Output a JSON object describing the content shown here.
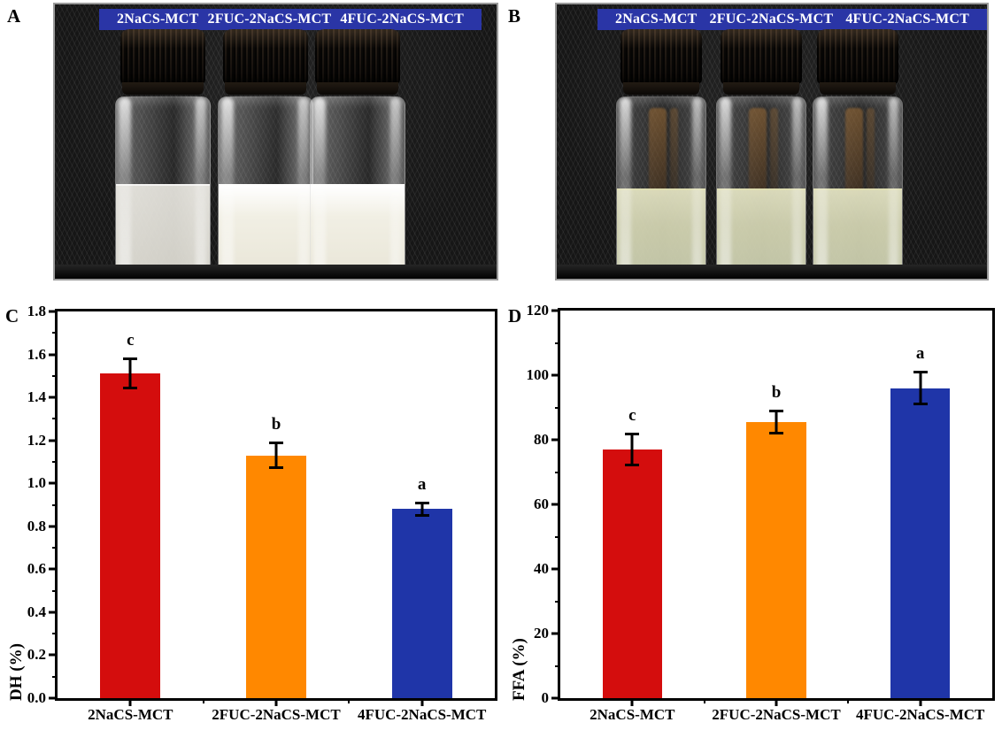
{
  "figure": {
    "panel_a": {
      "letter": "A"
    },
    "panel_b": {
      "letter": "B"
    },
    "banner_labels": [
      "2NaCS-MCT",
      "2FUC-2NaCS-MCT",
      "4FUC-2NaCS-MCT"
    ],
    "banner_color": "#2a35a6",
    "photo_a": {
      "liquid_color": "#f1efe4"
    },
    "photo_b": {
      "liquid_color": "#d7d8b6"
    }
  },
  "chart_data": [
    {
      "type": "bar",
      "panel_label": "C",
      "categories": [
        "2NaCS-MCT",
        "2FUC-2NaCS-MCT",
        "4FUC-2NaCS-MCT"
      ],
      "values": [
        1.51,
        1.13,
        0.88
      ],
      "errors": [
        0.07,
        0.06,
        0.03
      ],
      "sig_letters": [
        "c",
        "b",
        "a"
      ],
      "bar_colors": [
        "#d40d0d",
        "#ff8800",
        "#1f35a8"
      ],
      "xlabel": "",
      "ylabel": "DH (%)",
      "ylim": [
        0,
        1.8
      ],
      "ytick_step": 0.2,
      "minor_tick_step": 0.1,
      "ytick_decimals": 1,
      "grid": false,
      "legend": false
    },
    {
      "type": "bar",
      "panel_label": "D",
      "categories": [
        "2NaCS-MCT",
        "2FUC-2NaCS-MCT",
        "4FUC-2NaCS-MCT"
      ],
      "values": [
        77,
        85.5,
        96
      ],
      "errors": [
        5,
        3.5,
        5
      ],
      "sig_letters": [
        "c",
        "b",
        "a"
      ],
      "bar_colors": [
        "#d40d0d",
        "#ff8800",
        "#1f35a8"
      ],
      "xlabel": "",
      "ylabel": "FFA (%)",
      "ylim": [
        0,
        120
      ],
      "ytick_step": 20,
      "minor_tick_step": 10,
      "ytick_decimals": 0,
      "grid": false,
      "legend": false
    }
  ]
}
